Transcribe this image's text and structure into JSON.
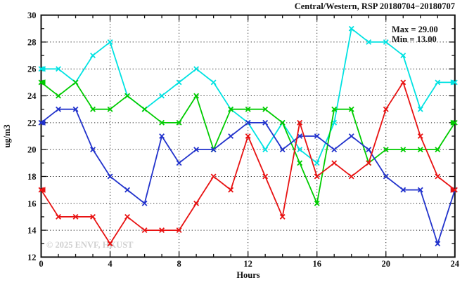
{
  "chart_data": {
    "type": "line",
    "title": "Central/Western, RSP 20180704−20180707",
    "xlabel": "Hours",
    "ylabel": "ug/m3",
    "xlim": [
      0,
      24
    ],
    "ylim": [
      12,
      30
    ],
    "x_major_ticks": [
      0,
      4,
      8,
      12,
      16,
      20,
      24
    ],
    "x_minor_step": 1,
    "y_major_ticks": [
      12,
      14,
      16,
      18,
      20,
      22,
      24,
      26,
      28,
      30
    ],
    "y_minor_step": 1,
    "grid_x": [
      4,
      8,
      12,
      16,
      20
    ],
    "grid_y": [
      14,
      16,
      18,
      20,
      22,
      24,
      26,
      28
    ],
    "grid_style": "dotted",
    "legend_position": "none",
    "annotations": {
      "max": "Max = 29.00",
      "min": "Min = 13.00"
    },
    "watermark": "© 2025 ENVF, HKUST",
    "x": [
      0,
      1,
      2,
      3,
      4,
      5,
      6,
      7,
      8,
      9,
      10,
      11,
      12,
      13,
      14,
      15,
      16,
      17,
      18,
      19,
      20,
      21,
      22,
      23,
      24
    ],
    "series": [
      {
        "name": "cyan-line",
        "color": "#00e2e2",
        "values": [
          26,
          26,
          25,
          27,
          28,
          24,
          23,
          24,
          25,
          26,
          25,
          23,
          22,
          20,
          22,
          20,
          19,
          22,
          29,
          28,
          28,
          27,
          23,
          25,
          25
        ]
      },
      {
        "name": "green-line",
        "color": "#00cc00",
        "values": [
          25,
          24,
          25,
          23,
          23,
          24,
          23,
          22,
          22,
          24,
          20,
          23,
          23,
          23,
          22,
          19,
          16,
          23,
          23,
          19,
          20,
          20,
          20,
          20,
          22
        ]
      },
      {
        "name": "blue-line",
        "color": "#2233cc",
        "values": [
          22,
          23,
          23,
          20,
          18,
          17,
          16,
          21,
          19,
          20,
          20,
          21,
          22,
          22,
          20,
          21,
          21,
          20,
          21,
          20,
          18,
          17,
          17,
          13,
          17
        ]
      },
      {
        "name": "red-line",
        "color": "#e81212",
        "values": [
          17,
          15,
          15,
          15,
          13,
          15,
          14,
          14,
          14,
          16,
          18,
          17,
          21,
          18,
          15,
          22,
          18,
          19,
          18,
          19,
          23,
          25,
          21,
          18,
          17
        ]
      }
    ],
    "stats": {
      "max_value": 29.0,
      "min_value": 13.0
    }
  }
}
